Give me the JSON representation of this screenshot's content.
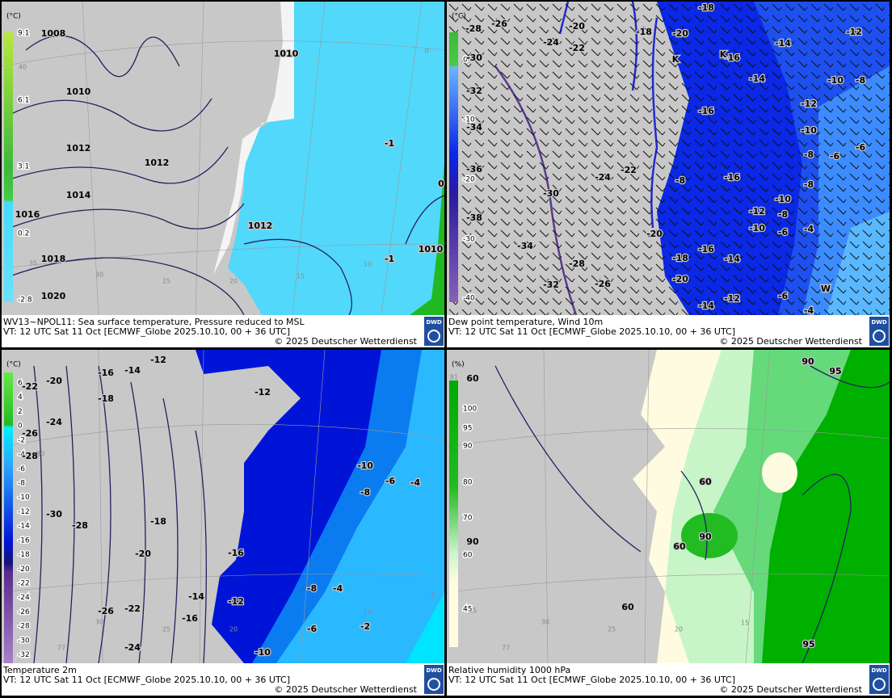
{
  "panels": [
    {
      "unit": "(°C)",
      "legend": [
        "9.1",
        "6.1",
        "3.1",
        "0.2",
        "-2.8"
      ],
      "labels": [
        "1008",
        "1010",
        "1012",
        "1012",
        "1014",
        "1016",
        "1018",
        "1020",
        "1010",
        "1012",
        "-1",
        "0",
        "-1",
        "1010"
      ],
      "grid_labels": [
        "40",
        "35",
        "30",
        "25",
        "20",
        "15",
        "10",
        "0"
      ],
      "caption": "WV13~NPOL11: Sea surface temperature,  Pressure reduced to MSL",
      "valid_time": "VT: 12 UTC Sat  11 Oct [ECMWF_Globe 2025.10.10, 00 + 36 UTC]",
      "copyright": "© 2025 Deutscher Wetterdienst",
      "logo": "DWD"
    },
    {
      "unit": "(°C)",
      "legend": [
        "0",
        "-10",
        "-20",
        "-30",
        "-40"
      ],
      "labels": [
        "-28",
        "-26",
        "-24",
        "-22",
        "-20",
        "-18",
        "-20",
        "-18",
        "-16",
        "-14",
        "-12",
        "-30",
        "-32",
        "-34",
        "-14",
        "-10",
        "-8",
        "-12",
        "-16",
        "-10",
        "-6",
        "-8",
        "-6",
        "-36",
        "-24",
        "-22",
        "-16",
        "-8",
        "-8",
        "-30",
        "-10",
        "-38",
        "-12",
        "-8",
        "-20",
        "-34",
        "-10",
        "-6",
        "-4",
        "-28",
        "-16",
        "-18",
        "-14",
        "-32",
        "-26",
        "-20",
        "-12",
        "-14",
        "-6",
        "-4",
        "K",
        "K",
        "W"
      ],
      "grid_labels": [],
      "caption": "Dew point temperature, Wind 10m",
      "valid_time": "VT: 12 UTC Sat  11 Oct [ECMWF_Globe 2025.10.10,  00 + 36 UTC]",
      "copyright": "© 2025 Deutscher Wetterdienst",
      "logo": "DWD"
    },
    {
      "unit": "(°C)",
      "legend": [
        "6",
        "4",
        "2",
        "0",
        "-2",
        "-4",
        "-6",
        "-8",
        "-10",
        "-12",
        "-14",
        "-16",
        "-18",
        "-20",
        "-22",
        "-24",
        "-26",
        "-28",
        "-30",
        "-32",
        "-34",
        "-36"
      ],
      "labels": [
        "-12",
        "-16",
        "-14",
        "-20",
        "-22",
        "-18",
        "-24",
        "-26",
        "-28",
        "-12",
        "-10",
        "-6",
        "-4",
        "-8",
        "-30",
        "-28",
        "-18",
        "-20",
        "-16",
        "-14",
        "-12",
        "-8",
        "-4",
        "-26",
        "-22",
        "-16",
        "-6",
        "-2",
        "-24",
        "-10"
      ],
      "grid_labels": [
        "80",
        "30",
        "25",
        "20",
        "10",
        "5",
        "77"
      ],
      "caption": "Temperature 2m",
      "valid_time": "VT: 12 UTC Sat  11 Oct [ECMWF_Globe 2025.10.10, 00 + 36 UTC]",
      "copyright": "© 2025 Deutscher Wetterdienst",
      "logo": "DWD"
    },
    {
      "unit": "(%)",
      "legend": [
        "100",
        "95",
        "90",
        "80",
        "70",
        "60",
        "45"
      ],
      "labels": [
        "60",
        "90",
        "95",
        "60",
        "90",
        "60",
        "90",
        "60",
        "95"
      ],
      "grid_labels": [
        "81",
        "35",
        "30",
        "25",
        "20",
        "15",
        "77"
      ],
      "caption": "Relative humidity 1000 hPa",
      "valid_time": "VT: 12 UTC Sat  11 Oct [ECMWF_Globe 2025.10.10, 00 + 36 UTC]",
      "copyright": "© 2025 Deutscher Wetterdienst",
      "logo": "DWD"
    }
  ]
}
